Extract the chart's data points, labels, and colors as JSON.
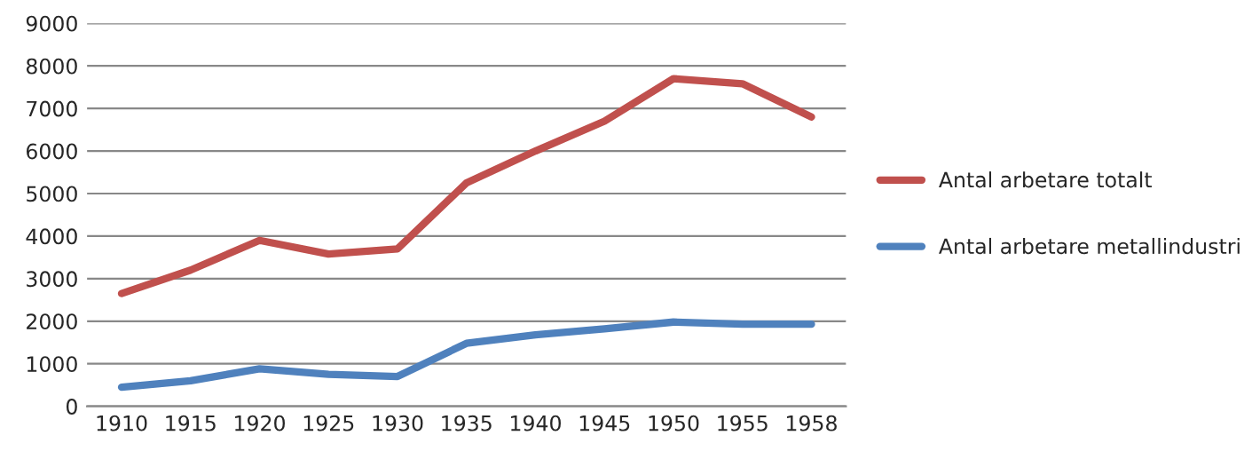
{
  "chart_data": {
    "type": "line",
    "categories": [
      "1910",
      "1915",
      "1920",
      "1925",
      "1930",
      "1935",
      "1940",
      "1945",
      "1950",
      "1955",
      "1958"
    ],
    "series": [
      {
        "name": "Antal arbetare totalt",
        "color": "#c0504d",
        "values": [
          2650,
          3200,
          3900,
          3580,
          3700,
          5250,
          6000,
          6700,
          7700,
          7580,
          6800
        ]
      },
      {
        "name": "Antal arbetare metallindustri",
        "color": "#4f81bd",
        "values": [
          450,
          600,
          880,
          750,
          700,
          1480,
          1680,
          1820,
          1980,
          1930,
          1930
        ]
      }
    ],
    "ylim": [
      0,
      9000
    ],
    "yticks": [
      0,
      1000,
      2000,
      3000,
      4000,
      5000,
      6000,
      7000,
      8000,
      9000
    ],
    "grid": "y",
    "legend": "right",
    "marker": "none",
    "line_style": "solid"
  }
}
